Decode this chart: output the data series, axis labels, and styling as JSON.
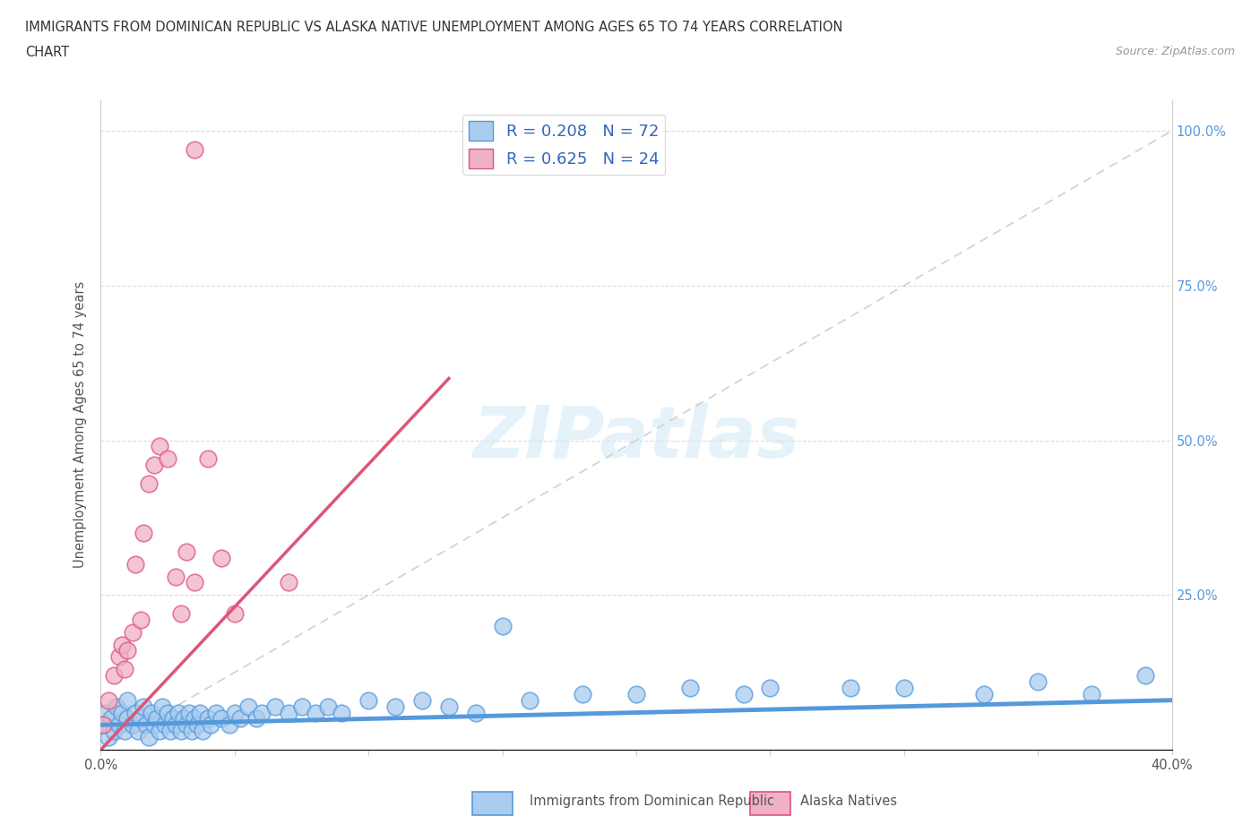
{
  "title_line1": "IMMIGRANTS FROM DOMINICAN REPUBLIC VS ALASKA NATIVE UNEMPLOYMENT AMONG AGES 65 TO 74 YEARS CORRELATION",
  "title_line2": "CHART",
  "source": "Source: ZipAtlas.com",
  "ylabel": "Unemployment Among Ages 65 to 74 years",
  "xlim": [
    0.0,
    0.4
  ],
  "ylim": [
    0.0,
    1.05
  ],
  "blue_color": "#aaccee",
  "pink_color": "#f0b0c8",
  "blue_line_color": "#5599dd",
  "pink_line_color": "#dd5577",
  "diag_line_color": "#cccccc",
  "R_blue": 0.208,
  "N_blue": 72,
  "R_pink": 0.625,
  "N_pink": 24,
  "watermark_text": "ZIPatlas",
  "legend_label_blue": "Immigrants from Dominican Republic",
  "legend_label_pink": "Alaska Natives",
  "blue_x": [
    0.001,
    0.002,
    0.003,
    0.004,
    0.005,
    0.006,
    0.007,
    0.008,
    0.009,
    0.01,
    0.01,
    0.012,
    0.013,
    0.014,
    0.015,
    0.016,
    0.017,
    0.018,
    0.019,
    0.02,
    0.021,
    0.022,
    0.023,
    0.024,
    0.025,
    0.026,
    0.027,
    0.028,
    0.029,
    0.03,
    0.031,
    0.032,
    0.033,
    0.034,
    0.035,
    0.036,
    0.037,
    0.038,
    0.04,
    0.041,
    0.043,
    0.045,
    0.048,
    0.05,
    0.052,
    0.055,
    0.058,
    0.06,
    0.065,
    0.07,
    0.075,
    0.08,
    0.085,
    0.09,
    0.1,
    0.11,
    0.12,
    0.13,
    0.14,
    0.15,
    0.16,
    0.18,
    0.2,
    0.22,
    0.24,
    0.25,
    0.28,
    0.3,
    0.33,
    0.35,
    0.37,
    0.39
  ],
  "blue_y": [
    0.04,
    0.06,
    0.02,
    0.05,
    0.03,
    0.07,
    0.04,
    0.06,
    0.03,
    0.05,
    0.08,
    0.04,
    0.06,
    0.03,
    0.05,
    0.07,
    0.04,
    0.02,
    0.06,
    0.04,
    0.05,
    0.03,
    0.07,
    0.04,
    0.06,
    0.03,
    0.05,
    0.04,
    0.06,
    0.03,
    0.05,
    0.04,
    0.06,
    0.03,
    0.05,
    0.04,
    0.06,
    0.03,
    0.05,
    0.04,
    0.06,
    0.05,
    0.04,
    0.06,
    0.05,
    0.07,
    0.05,
    0.06,
    0.07,
    0.06,
    0.07,
    0.06,
    0.07,
    0.06,
    0.08,
    0.07,
    0.08,
    0.07,
    0.06,
    0.2,
    0.08,
    0.09,
    0.09,
    0.1,
    0.09,
    0.1,
    0.1,
    0.1,
    0.09,
    0.11,
    0.09,
    0.12
  ],
  "pink_x": [
    0.001,
    0.003,
    0.005,
    0.007,
    0.008,
    0.009,
    0.01,
    0.012,
    0.013,
    0.015,
    0.016,
    0.018,
    0.02,
    0.022,
    0.025,
    0.028,
    0.03,
    0.032,
    0.035,
    0.04,
    0.045,
    0.05,
    0.07,
    0.035
  ],
  "pink_y": [
    0.04,
    0.08,
    0.12,
    0.15,
    0.17,
    0.13,
    0.16,
    0.19,
    0.3,
    0.21,
    0.35,
    0.43,
    0.46,
    0.49,
    0.47,
    0.28,
    0.22,
    0.32,
    0.27,
    0.47,
    0.31,
    0.22,
    0.27,
    0.97
  ],
  "pink_line_x0": 0.0,
  "pink_line_y0": 0.0,
  "pink_line_x1": 0.13,
  "pink_line_y1": 0.6,
  "blue_line_x0": 0.0,
  "blue_line_y0": 0.04,
  "blue_line_x1": 0.4,
  "blue_line_y1": 0.08
}
